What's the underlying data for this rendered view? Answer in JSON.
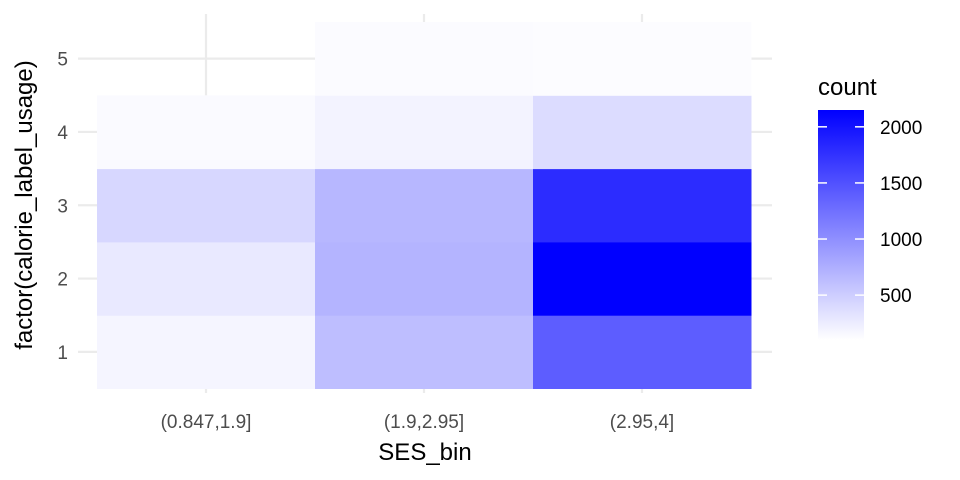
{
  "chart_data": {
    "type": "heatmap",
    "xlabel": "SES_bin",
    "ylabel": "factor(calorie_label_usage)",
    "x_categories": [
      "(0.847,1.9]",
      "(1.9,2.95]",
      "(2.95,4]"
    ],
    "y_categories": [
      "1",
      "2",
      "3",
      "4",
      "5"
    ],
    "cells": [
      {
        "x": "(0.847,1.9]",
        "y": "1",
        "count": 180
      },
      {
        "x": "(0.847,1.9]",
        "y": "2",
        "count": 280
      },
      {
        "x": "(0.847,1.9]",
        "y": "3",
        "count": 420
      },
      {
        "x": "(0.847,1.9]",
        "y": "4",
        "count": 140
      },
      {
        "x": "(1.9,2.95]",
        "y": "1",
        "count": 620
      },
      {
        "x": "(1.9,2.95]",
        "y": "2",
        "count": 700
      },
      {
        "x": "(1.9,2.95]",
        "y": "3",
        "count": 680
      },
      {
        "x": "(1.9,2.95]",
        "y": "4",
        "count": 200
      },
      {
        "x": "(1.9,2.95]",
        "y": "5",
        "count": 130
      },
      {
        "x": "(2.95,4]",
        "y": "1",
        "count": 1400
      },
      {
        "x": "(2.95,4]",
        "y": "2",
        "count": 2150
      },
      {
        "x": "(2.95,4]",
        "y": "3",
        "count": 1800
      },
      {
        "x": "(2.95,4]",
        "y": "4",
        "count": 380
      },
      {
        "x": "(2.95,4]",
        "y": "5",
        "count": 125
      }
    ],
    "legend": {
      "title": "count",
      "ticks": [
        500,
        1000,
        1500,
        2000
      ],
      "tick_labels": [
        "500",
        "1000",
        "1500",
        "2000"
      ],
      "min": 100,
      "max": 2150,
      "low_color": "#ffffff",
      "high_color": "#0000ff"
    },
    "grid": true,
    "legend_position": "right"
  }
}
